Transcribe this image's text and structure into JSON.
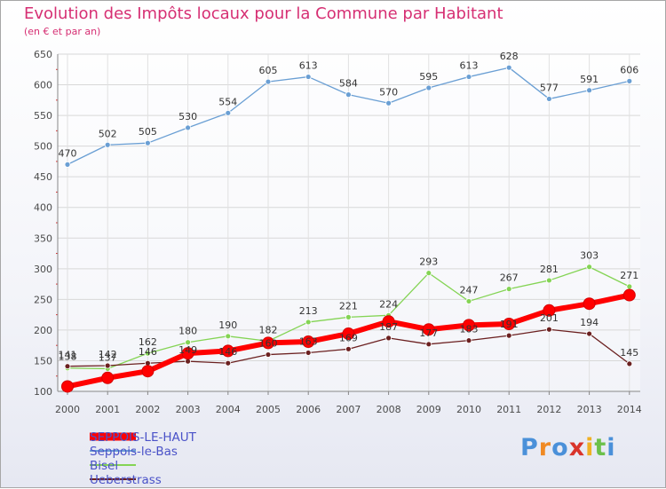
{
  "chart_data": {
    "type": "line",
    "title": "Evolution des Impôts locaux pour la Commune par Habitant",
    "subtitle": "(en € et par an)",
    "xlabel": "",
    "ylabel": "",
    "x": [
      "2000",
      "2001",
      "2002",
      "2003",
      "2004",
      "2005",
      "2006",
      "2007",
      "2008",
      "2009",
      "2010",
      "2011",
      "2012",
      "2013",
      "2014"
    ],
    "ylim": [
      100,
      650
    ],
    "yticks": [
      100,
      150,
      200,
      250,
      300,
      350,
      400,
      450,
      500,
      550,
      600,
      650
    ],
    "grid": true,
    "series": [
      {
        "name": "SEPPOIS-LE-HAUT",
        "color": "#ff0000",
        "values": [
          108,
          122,
          133,
          162,
          166,
          179,
          181,
          194,
          214,
          201,
          208,
          210,
          232,
          243,
          257
        ],
        "show_labels": false
      },
      {
        "name": "Seppois-le-Bas",
        "color": "#6a9fd4",
        "values": [
          470,
          502,
          505,
          530,
          554,
          605,
          613,
          584,
          570,
          595,
          613,
          628,
          577,
          591,
          606
        ],
        "show_labels": true
      },
      {
        "name": "Bisel",
        "color": "#84d454",
        "values": [
          138,
          137,
          162,
          180,
          190,
          182,
          213,
          221,
          224,
          293,
          247,
          267,
          281,
          303,
          271
        ],
        "show_labels": true
      },
      {
        "name": "Ueberstrass",
        "color": "#6b2020",
        "values": [
          141,
          142,
          146,
          149,
          146,
          160,
          163,
          169,
          187,
          177,
          183,
          191,
          201,
          194,
          145
        ],
        "show_labels": true
      }
    ]
  },
  "legend": [
    "SEPPOIS-LE-HAUT",
    "Seppois-le-Bas",
    "Bisel",
    "Ueberstrass"
  ],
  "logo": {
    "text": "Proxiti",
    "letters": [
      "P",
      "r",
      "o",
      "x",
      "i",
      "t",
      "i"
    ],
    "colors": [
      "#4a90d9",
      "#f08a24",
      "#4a90d9",
      "#d9342a",
      "#f0b024",
      "#6cc04a",
      "#4a90d9"
    ]
  }
}
